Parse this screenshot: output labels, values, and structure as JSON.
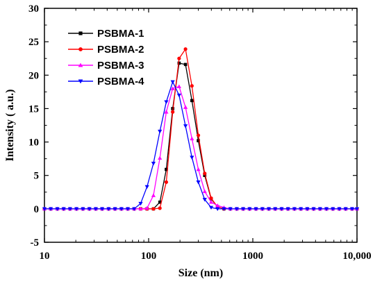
{
  "chart_data": {
    "type": "line",
    "title": "",
    "xlabel": "Size (nm)",
    "ylabel": "Intensity ( a.u.)",
    "x_scale": "log",
    "xlim": [
      10,
      10000
    ],
    "ylim": [
      -5,
      30
    ],
    "x_ticks": [
      10,
      100,
      1000,
      10000
    ],
    "x_tick_labels": [
      "10",
      "100",
      "1000",
      "10,000"
    ],
    "y_ticks": [
      -5,
      0,
      5,
      10,
      15,
      20,
      25,
      30
    ],
    "y_tick_labels": [
      "-5",
      "0",
      "5",
      "10",
      "15",
      "20",
      "25",
      "30"
    ],
    "grid": false,
    "legend_position": "top-left",
    "x": [
      10.0,
      11.5,
      13.3,
      15.3,
      17.6,
      20.3,
      23.4,
      27.0,
      31.1,
      35.8,
      41.3,
      47.6,
      54.8,
      63.1,
      72.7,
      83.8,
      96.5,
      111.2,
      128.2,
      147.7,
      170.2,
      196.1,
      225.9,
      260.3,
      299.9,
      345.5,
      398.1,
      458.6,
      528.4,
      608.8,
      701.4,
      808.1,
      931.1,
      1072.7,
      1235.9,
      1424.0,
      1640.6,
      1890.2,
      2177.8,
      2509.1,
      2890.8,
      3330.5,
      3837.1,
      4420.9,
      5093.4,
      5868.1,
      6760.8,
      7789.3,
      8974.2,
      10000.0
    ],
    "series": [
      {
        "name": "PSBMA-1",
        "color": "#000000",
        "marker": "square",
        "values": [
          0,
          0,
          0,
          0,
          0,
          0,
          0,
          0,
          0,
          0,
          0,
          0,
          0,
          0,
          0,
          0,
          0,
          0,
          1.0,
          5.9,
          15.0,
          21.8,
          21.6,
          16.2,
          10.2,
          5.0,
          1.5,
          0.3,
          0,
          0,
          0,
          0,
          0,
          0,
          0,
          0,
          0,
          0,
          0,
          0,
          0,
          0,
          0,
          0,
          0,
          0,
          0,
          0,
          0,
          0
        ]
      },
      {
        "name": "PSBMA-2",
        "color": "#ff0000",
        "marker": "circle",
        "values": [
          0,
          0,
          0,
          0,
          0,
          0,
          0,
          0,
          0,
          0,
          0,
          0,
          0,
          0,
          0,
          0,
          0,
          0,
          0.1,
          4.0,
          14.5,
          22.5,
          23.9,
          18.4,
          11.0,
          5.3,
          1.6,
          0.3,
          0,
          0,
          0,
          0,
          0,
          0,
          0,
          0,
          0,
          0,
          0,
          0,
          0,
          0,
          0,
          0,
          0,
          0,
          0,
          0,
          0,
          0
        ]
      },
      {
        "name": "PSBMA-3",
        "color": "#ff00ff",
        "marker": "triangle-up",
        "values": [
          0,
          0,
          0,
          0,
          0,
          0,
          0,
          0,
          0,
          0,
          0,
          0,
          0,
          0,
          0,
          0,
          0.1,
          2.0,
          7.6,
          14.5,
          18.0,
          18.3,
          15.2,
          10.5,
          5.9,
          2.6,
          1.0,
          0.5,
          0.2,
          0,
          0,
          0,
          0,
          0,
          0,
          0,
          0,
          0,
          0,
          0,
          0,
          0,
          0,
          0,
          0,
          0,
          0,
          0,
          0,
          0
        ]
      },
      {
        "name": "PSBMA-4",
        "color": "#0000ff",
        "marker": "triangle-down",
        "values": [
          0,
          0,
          0,
          0,
          0,
          0,
          0,
          0,
          0,
          0,
          0,
          0,
          0,
          0,
          0,
          0.8,
          3.3,
          6.8,
          11.6,
          16.0,
          19.0,
          17.0,
          12.4,
          7.7,
          4.0,
          1.4,
          0.2,
          0,
          0,
          0,
          0,
          0,
          0,
          0,
          0,
          0,
          0,
          0,
          0,
          0,
          0,
          0,
          0,
          0,
          0,
          0,
          0,
          0,
          0,
          0
        ]
      }
    ]
  }
}
